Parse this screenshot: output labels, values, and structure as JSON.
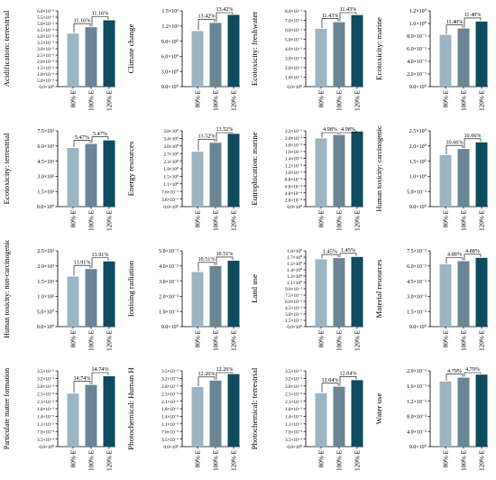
{
  "colors": {
    "bar_80": "#9db5c2",
    "bar_100": "#6b8595",
    "bar_120": "#0d4d5f",
    "axis": "#000000",
    "bracket": "#000000"
  },
  "layout_words": {
    "columns": 4,
    "rows": 4
  },
  "chart_data": [
    {
      "type": "bar",
      "categories": [
        "80% E",
        "100% E",
        "120% E"
      ],
      "values": [
        0.042,
        0.047,
        0.0525
      ],
      "ylabel": "Acidification: terrestrial",
      "ylim": [
        0,
        0.06
      ],
      "yticks": [
        "0.0×10⁰",
        "5.0×10⁻³",
        "1.0×10⁻²",
        "1.5×10⁻²",
        "2.0×10⁻²",
        "2.5×10⁻²",
        "3.0×10⁻²",
        "3.5×10⁻²",
        "4.0×10⁻²",
        "4.5×10⁻²",
        "5.0×10⁻²",
        "5.5×10⁻²",
        "6.0×10⁻²"
      ],
      "annotations": [
        "11.16%",
        "11.16%"
      ]
    },
    {
      "type": "bar",
      "categories": [
        "80% E",
        "100% E",
        "120% E"
      ],
      "values": [
        11,
        12.6,
        14.2
      ],
      "ylabel": "Climate change",
      "ylim": [
        0,
        15
      ],
      "yticks": [
        "0.0×10⁰",
        "3.0×10⁰",
        "6.0×10⁰",
        "9.0×10⁰",
        "1.2×10¹",
        "1.5×10¹"
      ],
      "annotations": [
        "13.42%",
        "13.42%"
      ]
    },
    {
      "type": "bar",
      "categories": [
        "80% E",
        "100% E",
        "120% E"
      ],
      "values": [
        0.61,
        0.68,
        0.755
      ],
      "ylabel": "Ecotoxicity: freshwater",
      "ylim": [
        0,
        0.8
      ],
      "yticks": [
        "0.0×10⁰",
        "1.0×10⁻¹",
        "2.0×10⁻¹",
        "3.0×10⁻¹",
        "4.0×10⁻¹",
        "5.0×10⁻¹",
        "6.0×10⁻¹",
        "7.0×10⁻¹",
        "8.0×10⁻¹"
      ],
      "annotations": [
        "11.43%",
        "11.43%"
      ]
    },
    {
      "type": "bar",
      "categories": [
        "80% E",
        "100% E",
        "120% E"
      ],
      "values": [
        0.82,
        0.92,
        1.03
      ],
      "ylabel": "Ecotoxicity: marine",
      "ylim": [
        0,
        1.2
      ],
      "yticks": [
        "0.0×10⁰",
        "2.0×10⁻¹",
        "4.0×10⁻¹",
        "6.0×10⁻¹",
        "8.0×10⁻¹",
        "1.0×10⁰",
        "1.2×10⁰"
      ],
      "annotations": [
        "11.40%",
        "11.40%"
      ]
    },
    {
      "type": "bar",
      "categories": [
        "80% E",
        "100% E",
        "120% E"
      ],
      "values": [
        58,
        62,
        65.5
      ],
      "ylabel": "Ecotoxicity: terrestrial",
      "ylim": [
        0,
        75
      ],
      "yticks": [
        "0.0×10⁰",
        "1.5×10¹",
        "3.0×10¹",
        "4.5×10¹",
        "6.0×10¹",
        "7.5×10¹"
      ],
      "annotations": [
        "5.47%",
        "5.47%"
      ]
    },
    {
      "type": "bar",
      "categories": [
        "80% E",
        "100% E",
        "120% E"
      ],
      "values": [
        2.75,
        3.2,
        3.65
      ],
      "ylabel": "Energy resources",
      "ylim": [
        0,
        3.8
      ],
      "yticks": [
        "0.0×10⁰",
        "3.8×10⁻¹",
        "7.6×10⁻¹",
        "1.1×10⁰",
        "1.5×10⁰",
        "1.9×10⁰",
        "2.3×10⁰",
        "2.7×10⁰",
        "3.0×10⁰",
        "3.4×10⁰",
        "3.8×10⁰"
      ],
      "annotations": [
        "13.52%",
        "13.52%"
      ]
    },
    {
      "type": "bar",
      "categories": [
        "80% E",
        "100% E",
        "120% E"
      ],
      "values": [
        0.00198,
        0.00208,
        0.00218
      ],
      "ylabel": "Eutrophication: marine",
      "ylim": [
        0,
        0.0022
      ],
      "yticks": [
        "0.0×10⁰",
        "2.0×10⁻⁴",
        "4.0×10⁻⁴",
        "6.0×10⁻⁴",
        "8.0×10⁻⁴",
        "1.0×10⁻³",
        "1.2×10⁻³",
        "1.4×10⁻³",
        "1.6×10⁻³",
        "1.8×10⁻³",
        "2.0×10⁻³",
        "2.2×10⁻³"
      ],
      "annotations": [
        "4.98%",
        "4.98%"
      ]
    },
    {
      "type": "bar",
      "categories": [
        "80% E",
        "100% E",
        "120% E"
      ],
      "values": [
        1.7,
        1.9,
        2.12
      ],
      "ylabel": "Human toxicity: carcinogenic",
      "ylim": [
        0,
        2.5
      ],
      "yticks": [
        "0.0×10⁰",
        "5.0×10⁻¹",
        "1.0×10⁰",
        "1.5×10⁰",
        "2.0×10⁰",
        "2.5×10⁰"
      ],
      "annotations": [
        "10.66%",
        "10.66%"
      ]
    },
    {
      "type": "bar",
      "categories": [
        "80% E",
        "100% E",
        "120% E"
      ],
      "values": [
        16.5,
        19,
        21.5
      ],
      "ylabel": "Human toxicity: non-carcinogenic",
      "ylim": [
        0,
        25
      ],
      "yticks": [
        "0.0×10⁰",
        "5.0×10⁰",
        "1.0×10¹",
        "1.5×10¹",
        "2.0×10¹",
        "2.5×10¹"
      ],
      "annotations": [
        "13.91%",
        "13.91%"
      ]
    },
    {
      "type": "bar",
      "categories": [
        "80% E",
        "100% E",
        "120% E"
      ],
      "values": [
        0.036,
        0.04,
        0.0435
      ],
      "ylabel": "Ionising radiation",
      "ylim": [
        0,
        0.05
      ],
      "yticks": [
        "0.0×10⁰",
        "1.0×10⁻²",
        "2.0×10⁻²",
        "3.0×10⁻²",
        "4.0×10⁻²",
        "5.0×10⁻²"
      ],
      "annotations": [
        "10.51%",
        "10.51%"
      ]
    },
    {
      "type": "bar",
      "categories": [
        "80% E",
        "100% E",
        "120% E"
      ],
      "values": [
        1.76,
        1.79,
        1.82
      ],
      "ylabel": "Land use",
      "ylim": [
        0,
        1.98
      ],
      "yticks": [
        "0.0×10⁰",
        "1.5×10⁻¹",
        "3.0×10⁻¹",
        "4.5×10⁻¹",
        "6.0×10⁻¹",
        "7.5×10⁻¹",
        "9.0×10⁻¹",
        "1.1×10⁰",
        "1.2×10⁰",
        "1.4×10⁰",
        "1.5×10⁰",
        "1.7×10⁰",
        "1.8×10⁰"
      ],
      "annotations": [
        "1.45%",
        "1.45%"
      ]
    },
    {
      "type": "bar",
      "categories": [
        "80% E",
        "100% E",
        "120% E"
      ],
      "values": [
        0.069,
        0.0725,
        0.0762
      ],
      "ylabel": "Material resources",
      "ylim": [
        0,
        0.084
      ],
      "yticks": [
        "0.0×10⁰",
        "1.5×10⁻²",
        "3.0×10⁻²",
        "4.5×10⁻²",
        "6.0×10⁻²",
        "7.5×10⁻²"
      ],
      "annotations": [
        "4.88%",
        "4.88%"
      ]
    },
    {
      "type": "bar",
      "categories": [
        "80% E",
        "100% E",
        "120% E"
      ],
      "values": [
        0.0245,
        0.0285,
        0.0325
      ],
      "ylabel": "Particulate matter formation",
      "ylim": [
        0,
        0.035
      ],
      "yticks": [
        "0.0×10⁰",
        "3.5×10⁻³",
        "7.0×10⁻³",
        "1.1×10⁻²",
        "1.4×10⁻²",
        "1.8×10⁻²",
        "2.1×10⁻²",
        "2.5×10⁻²",
        "2.8×10⁻²",
        "3.2×10⁻²",
        "3.5×10⁻²"
      ],
      "annotations": [
        "14.74%",
        "14.74%"
      ]
    },
    {
      "type": "bar",
      "categories": [
        "80% E",
        "100% E",
        "120% E"
      ],
      "values": [
        0.0275,
        0.0305,
        0.0335
      ],
      "ylabel": "Photochemical: Human H",
      "ylim": [
        0,
        0.035
      ],
      "yticks": [
        "0.0×10⁰",
        "3.5×10⁻³",
        "7.0×10⁻³",
        "1.1×10⁻²",
        "1.4×10⁻²",
        "1.8×10⁻²",
        "2.1×10⁻²",
        "2.5×10⁻²",
        "2.8×10⁻²",
        "3.2×10⁻²",
        "3.5×10⁻²"
      ],
      "annotations": [
        "12.26%",
        "12.26%"
      ]
    },
    {
      "type": "bar",
      "categories": [
        "80% E",
        "100% E",
        "120% E"
      ],
      "values": [
        0.0275,
        0.0308,
        0.0342
      ],
      "ylabel": "Photochemical: terrestrial",
      "ylim": [
        0,
        0.039
      ],
      "yticks": [
        "0.0×10⁰",
        "3.5×10⁻³",
        "7.0×10⁻³",
        "1.1×10⁻²",
        "1.4×10⁻²",
        "1.8×10⁻²",
        "2.1×10⁻²",
        "2.5×10⁻²",
        "2.8×10⁻²",
        "3.2×10⁻²",
        "3.5×10⁻²"
      ],
      "annotations": [
        "12.04%",
        "12.04%"
      ]
    },
    {
      "type": "bar",
      "categories": [
        "80% E",
        "100% E",
        "120% E"
      ],
      "values": [
        0.172,
        0.182,
        0.19
      ],
      "ylabel": "Water use",
      "ylim": [
        0,
        0.2
      ],
      "yticks": [
        "0.0×10⁰",
        "4.0×10⁻²",
        "8.0×10⁻²",
        "1.2×10⁻¹",
        "1.6×10⁻¹",
        "2.0×10⁻¹"
      ],
      "annotations": [
        "4.79%",
        "4.79%"
      ]
    }
  ]
}
